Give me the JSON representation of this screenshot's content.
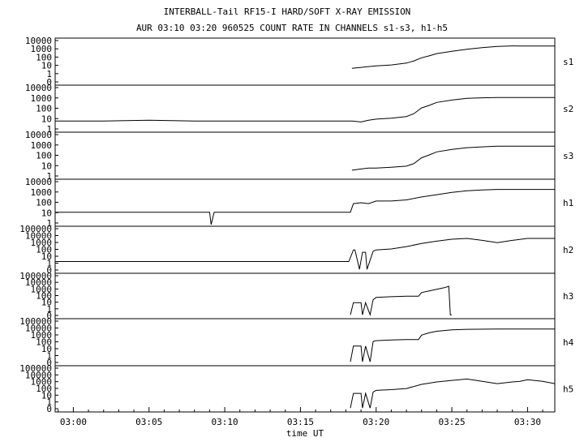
{
  "chart_data": {
    "type": "line",
    "title": "INTERBALL-Tail RF15-I HARD/SOFT X-RAY EMISSION",
    "subtitle": "AUR 03:10 03:20 960525  COUNT RATE IN CHANNELS s1-s3, h1-h5",
    "xlabel": "time UT",
    "x_ticks": [
      "03:00",
      "03:05",
      "03:10",
      "03:15",
      "03:20",
      "03:25",
      "03:30"
    ],
    "x_tick_minutes": [
      0,
      5,
      10,
      15,
      20,
      25,
      30
    ],
    "xlim_minutes": [
      -1.2,
      31.8
    ],
    "y_scale": "log",
    "grid": false,
    "legend": "right of each panel",
    "panels": [
      {
        "name": "s1",
        "y_ticks": [
          "10000",
          "1000",
          "100",
          "10",
          "1",
          "0"
        ],
        "ylim": [
          0.5,
          20000
        ],
        "x": [
          -1.2,
          18.35,
          18.4,
          19.0,
          19.5,
          20.0,
          21.0,
          22.0,
          22.5,
          23.0,
          23.5,
          24.0,
          25.0,
          26.0,
          27.0,
          28.0,
          29.0,
          29.5,
          30.0,
          31.8
        ],
        "values": [
          null,
          null,
          20,
          25,
          30,
          35,
          45,
          70,
          120,
          250,
          400,
          700,
          1200,
          2000,
          3000,
          4000,
          4500,
          4400,
          4300,
          4300
        ]
      },
      {
        "name": "s2",
        "y_ticks": [
          "10000",
          "1000",
          "100",
          "10",
          "1"
        ],
        "ylim": [
          0.5,
          20000
        ],
        "x": [
          -1.2,
          2.0,
          5.0,
          8.0,
          11.0,
          14.0,
          18.4,
          19.0,
          19.5,
          20.0,
          21.0,
          22.0,
          22.5,
          23.0,
          23.5,
          24.0,
          25.0,
          26.0,
          27.0,
          28.0,
          29.0,
          30.0,
          31.8
        ],
        "values": [
          5,
          5,
          6,
          5,
          5,
          5,
          5,
          4,
          6,
          8,
          10,
          15,
          30,
          120,
          220,
          450,
          800,
          1200,
          1400,
          1500,
          1500,
          1500,
          1500
        ]
      },
      {
        "name": "s3",
        "y_ticks": [
          "10000",
          "1000",
          "100",
          "10",
          "1"
        ],
        "ylim": [
          0.5,
          20000
        ],
        "x": [
          -1.2,
          18.35,
          18.4,
          19.0,
          19.5,
          20.0,
          21.0,
          22.0,
          22.5,
          23.0,
          23.5,
          24.0,
          25.0,
          26.0,
          27.0,
          28.0,
          29.0,
          30.0,
          31.8
        ],
        "values": [
          null,
          null,
          3,
          4,
          5,
          5,
          6,
          8,
          15,
          60,
          120,
          250,
          450,
          700,
          850,
          1000,
          1000,
          1000,
          1000
        ]
      },
      {
        "name": "h1",
        "y_ticks": [
          "10000",
          "1000",
          "100",
          "10",
          "1"
        ],
        "ylim": [
          0.5,
          20000
        ],
        "x": [
          -1.2,
          4.0,
          8.0,
          9.0,
          9.1,
          9.3,
          9.5,
          12.0,
          15.0,
          18.3,
          18.5,
          19.0,
          19.5,
          20.0,
          21.0,
          22.0,
          23.0,
          24.0,
          25.0,
          26.0,
          27.0,
          28.0,
          29.0,
          30.0,
          31.8
        ],
        "values": [
          10,
          10,
          10,
          10,
          0.5,
          10,
          10,
          10,
          10,
          10,
          80,
          100,
          80,
          150,
          150,
          200,
          400,
          700,
          1200,
          1800,
          2200,
          2500,
          2500,
          2500,
          2500
        ]
      },
      {
        "name": "h2",
        "y_ticks": [
          "100000",
          "10000",
          "1000",
          "100",
          "10",
          "1",
          "0"
        ],
        "ylim": [
          0.5,
          200000
        ],
        "x": [
          -1.2,
          10.0,
          18.2,
          18.5,
          18.6,
          18.9,
          19.1,
          19.3,
          19.4,
          19.8,
          20.0,
          21.0,
          22.0,
          23.0,
          24.0,
          25.0,
          26.0,
          27.0,
          28.0,
          29.0,
          30.0,
          31.8
        ],
        "values": [
          10,
          10,
          10,
          300,
          300,
          1,
          150,
          150,
          1,
          200,
          300,
          400,
          800,
          2000,
          4000,
          7000,
          9000,
          5000,
          2500,
          5000,
          9000,
          9000
        ]
      },
      {
        "name": "h3",
        "y_ticks": [
          "100000",
          "10000",
          "1000",
          "100",
          "10",
          "1",
          "0"
        ],
        "ylim": [
          0.5,
          200000
        ],
        "x": [
          -1.2,
          18.2,
          18.3,
          18.5,
          19.0,
          19.1,
          19.3,
          19.6,
          19.8,
          20.0,
          21.0,
          22.0,
          22.8,
          23.0,
          23.5,
          24.0,
          24.5,
          24.8,
          24.9,
          25.0,
          31.8
        ],
        "values": [
          null,
          null,
          1,
          40,
          40,
          1,
          40,
          1,
          100,
          200,
          250,
          300,
          300,
          900,
          1500,
          2500,
          4000,
          6000,
          1,
          1,
          null
        ]
      },
      {
        "name": "h4",
        "y_ticks": [
          "100000",
          "10000",
          "1000",
          "100",
          "10",
          "1",
          "0"
        ],
        "ylim": [
          0.5,
          200000
        ],
        "x": [
          -1.2,
          18.2,
          18.3,
          18.5,
          19.0,
          19.1,
          19.3,
          19.6,
          19.8,
          20.0,
          21.0,
          22.0,
          22.8,
          23.0,
          23.5,
          24.0,
          25.0,
          26.0,
          28.0,
          30.0,
          31.8
        ],
        "values": [
          null,
          null,
          1,
          100,
          100,
          1,
          100,
          1,
          400,
          500,
          600,
          700,
          700,
          2500,
          5000,
          8000,
          12000,
          14000,
          15000,
          15000,
          15000
        ]
      },
      {
        "name": "h5",
        "y_ticks": [
          "100000",
          "10000",
          "1000",
          "100",
          "10",
          "1",
          "0"
        ],
        "ylim": [
          0.5,
          200000
        ],
        "x": [
          -1.2,
          18.2,
          18.3,
          18.5,
          19.0,
          19.1,
          19.3,
          19.6,
          19.8,
          20.0,
          21.0,
          22.0,
          23.0,
          24.0,
          25.0,
          26.0,
          27.0,
          28.0,
          29.0,
          29.5,
          30.0,
          31.0,
          31.8
        ],
        "values": [
          null,
          null,
          1,
          80,
          80,
          1,
          80,
          1,
          120,
          200,
          250,
          350,
          1200,
          2500,
          4000,
          6000,
          3000,
          1500,
          2500,
          3000,
          5000,
          3000,
          1500
        ]
      }
    ]
  }
}
